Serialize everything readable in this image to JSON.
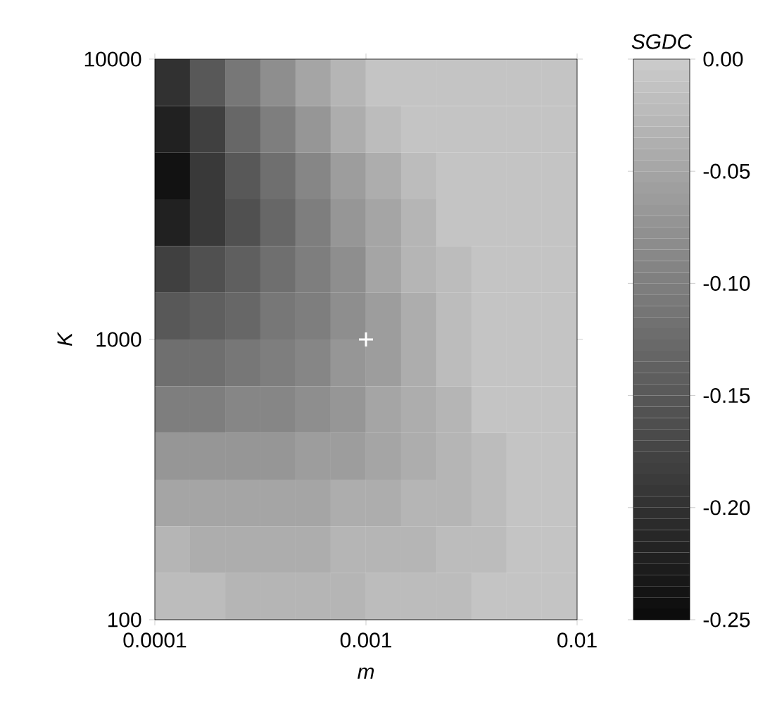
{
  "chart_data": {
    "type": "heatmap",
    "xlabel": "m",
    "ylabel": "K",
    "clabel": "SGDC",
    "log": "xy",
    "x": [
      0.000121,
      0.000178,
      0.000261,
      0.000383,
      0.000562,
      0.000825,
      0.00121,
      0.00178,
      0.00261,
      0.00383,
      0.00562,
      0.00825
    ],
    "y": [
      8250,
      5620,
      3830,
      2610,
      1780,
      1210,
      825,
      562,
      383,
      261,
      178,
      121
    ],
    "series": [
      {
        "type": "scatter",
        "x": [
          0.001
        ],
        "values": [
          1000
        ],
        "color": "#ffffff",
        "marker": "cross"
      }
    ],
    "xlim": [
      0.0001,
      0.01
    ],
    "xticks": [
      0.0001,
      0.001,
      0.01
    ],
    "ylim": [
      100,
      10000
    ],
    "yticks": [
      100,
      1000,
      10000
    ],
    "clim": [
      -0.25,
      0
    ],
    "cticks": [
      {
        "value": 0,
        "label": "0.00"
      },
      {
        "value": -0.05,
        "label": "-0.05"
      },
      {
        "value": -0.1,
        "label": "-0.10"
      },
      {
        "value": -0.15,
        "label": "-0.15"
      },
      {
        "value": -0.2,
        "label": "-0.20"
      },
      {
        "value": -0.25,
        "label": "-0.25"
      }
    ],
    "cells": [
      [
        -0.2,
        -0.15,
        -0.11,
        -0.08,
        -0.05,
        -0.03,
        -0.01,
        -0.01,
        -0.01,
        -0.01,
        -0.01,
        -0.01
      ],
      [
        -0.22,
        -0.18,
        -0.13,
        -0.1,
        -0.07,
        -0.04,
        -0.02,
        -0.01,
        -0.01,
        -0.01,
        -0.01,
        -0.01
      ],
      [
        -0.24,
        -0.19,
        -0.15,
        -0.12,
        -0.09,
        -0.06,
        -0.04,
        -0.02,
        -0.01,
        -0.01,
        -0.01,
        -0.01
      ],
      [
        -0.22,
        -0.19,
        -0.16,
        -0.13,
        -0.1,
        -0.07,
        -0.05,
        -0.03,
        -0.01,
        -0.01,
        -0.01,
        -0.01
      ],
      [
        -0.18,
        -0.16,
        -0.14,
        -0.12,
        -0.1,
        -0.08,
        -0.05,
        -0.03,
        -0.02,
        -0.01,
        -0.01,
        -0.01
      ],
      [
        -0.15,
        -0.14,
        -0.13,
        -0.11,
        -0.1,
        -0.08,
        -0.06,
        -0.04,
        -0.02,
        -0.01,
        -0.01,
        -0.01
      ],
      [
        -0.12,
        -0.12,
        -0.11,
        -0.1,
        -0.09,
        -0.07,
        -0.06,
        -0.04,
        -0.02,
        -0.01,
        -0.01,
        -0.01
      ],
      [
        -0.1,
        -0.1,
        -0.09,
        -0.09,
        -0.08,
        -0.07,
        -0.05,
        -0.04,
        -0.03,
        -0.01,
        -0.01,
        -0.01
      ],
      [
        -0.07,
        -0.07,
        -0.07,
        -0.07,
        -0.06,
        -0.06,
        -0.05,
        -0.04,
        -0.03,
        -0.02,
        -0.01,
        -0.01
      ],
      [
        -0.05,
        -0.05,
        -0.05,
        -0.05,
        -0.05,
        -0.04,
        -0.04,
        -0.03,
        -0.03,
        -0.02,
        -0.01,
        -0.01
      ],
      [
        -0.03,
        -0.04,
        -0.04,
        -0.04,
        -0.04,
        -0.03,
        -0.03,
        -0.03,
        -0.02,
        -0.02,
        -0.01,
        -0.01
      ],
      [
        -0.02,
        -0.02,
        -0.03,
        -0.03,
        -0.03,
        -0.03,
        -0.02,
        -0.02,
        -0.02,
        -0.01,
        -0.01,
        -0.01
      ]
    ]
  }
}
